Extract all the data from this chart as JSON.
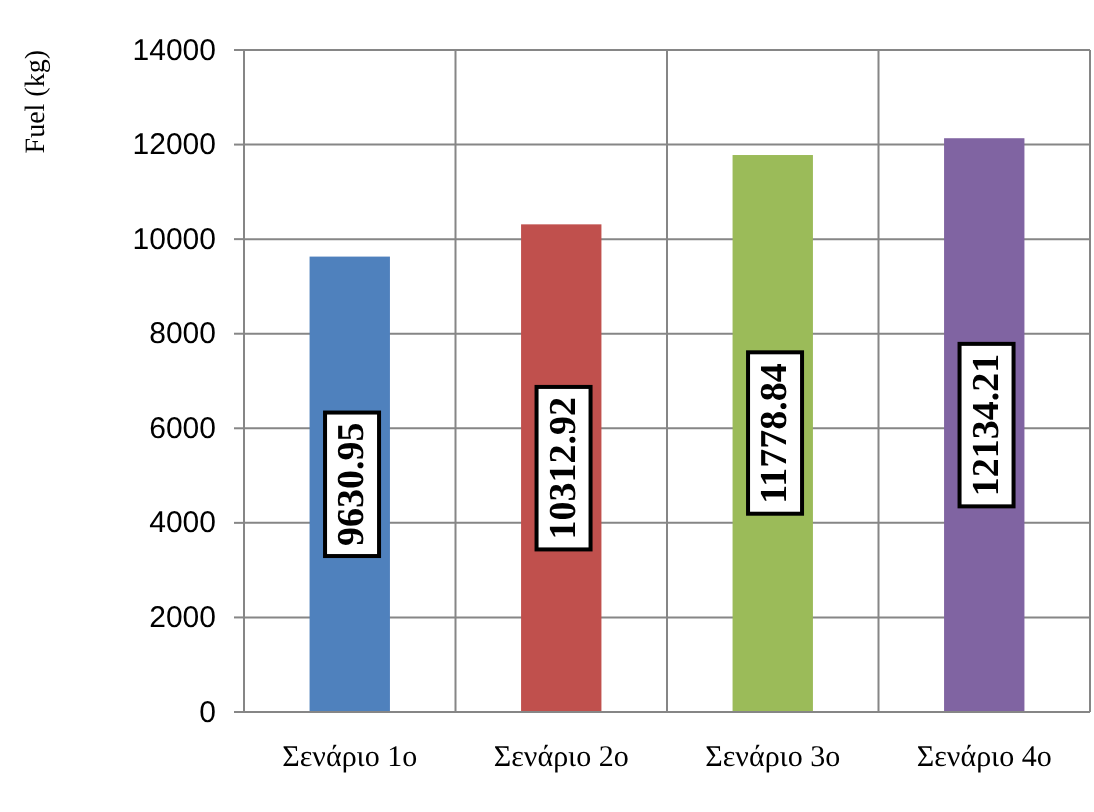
{
  "chart_data": {
    "type": "bar",
    "ylabel": "Fuel (kg)",
    "categories": [
      "Σενάριο 1ο",
      "Σενάριο 2ο",
      "Σενάριο 3ο",
      "Σενάριο 4ο"
    ],
    "values": [
      9630.95,
      10312.92,
      11778.84,
      12134.21
    ],
    "colors": [
      "#4f81bd",
      "#c0504d",
      "#9bbb59",
      "#8064a2"
    ],
    "ylim": [
      0,
      14000
    ],
    "yticks": [
      0,
      2000,
      4000,
      6000,
      8000,
      10000,
      12000,
      14000
    ],
    "grid": true,
    "data_labels": true
  }
}
